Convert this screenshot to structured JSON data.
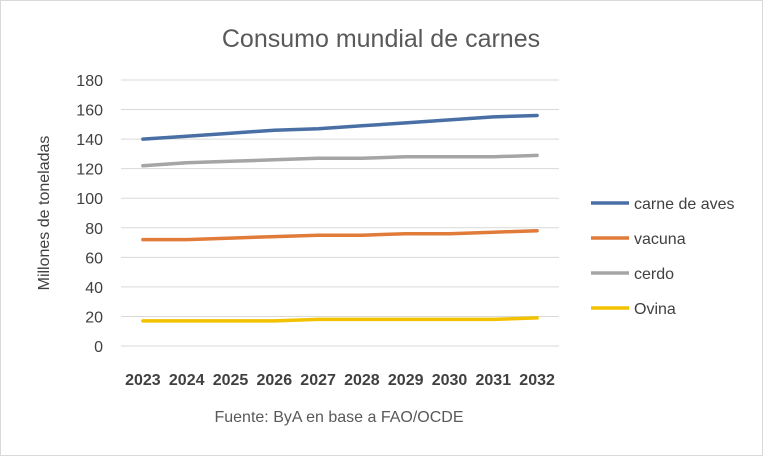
{
  "chart_data": {
    "type": "line",
    "title": "Consumo mundial de carnes",
    "ylabel": "Millones de toneladas",
    "xlabel": "",
    "source": "Fuente: ByA en base a FAO/OCDE",
    "categories": [
      "2023",
      "2024",
      "2025",
      "2026",
      "2027",
      "2028",
      "2029",
      "2030",
      "2031",
      "2032"
    ],
    "ylim": [
      0,
      180
    ],
    "yticks": [
      0,
      20,
      40,
      60,
      80,
      100,
      120,
      140,
      160,
      180
    ],
    "grid": true,
    "legend_position": "right",
    "series": [
      {
        "name": "carne de aves",
        "color": "#4a6fa5",
        "values": [
          140,
          142,
          144,
          146,
          147,
          149,
          151,
          153,
          155,
          156
        ]
      },
      {
        "name": "vacuna",
        "color": "#e07b39",
        "values": [
          72,
          72,
          73,
          74,
          75,
          75,
          76,
          76,
          77,
          78
        ]
      },
      {
        "name": "cerdo",
        "color": "#a5a5a5",
        "values": [
          122,
          124,
          125,
          126,
          127,
          127,
          128,
          128,
          128,
          129
        ]
      },
      {
        "name": "Ovina",
        "color": "#f2c200",
        "values": [
          17,
          17,
          17,
          17,
          18,
          18,
          18,
          18,
          18,
          19
        ]
      }
    ]
  }
}
